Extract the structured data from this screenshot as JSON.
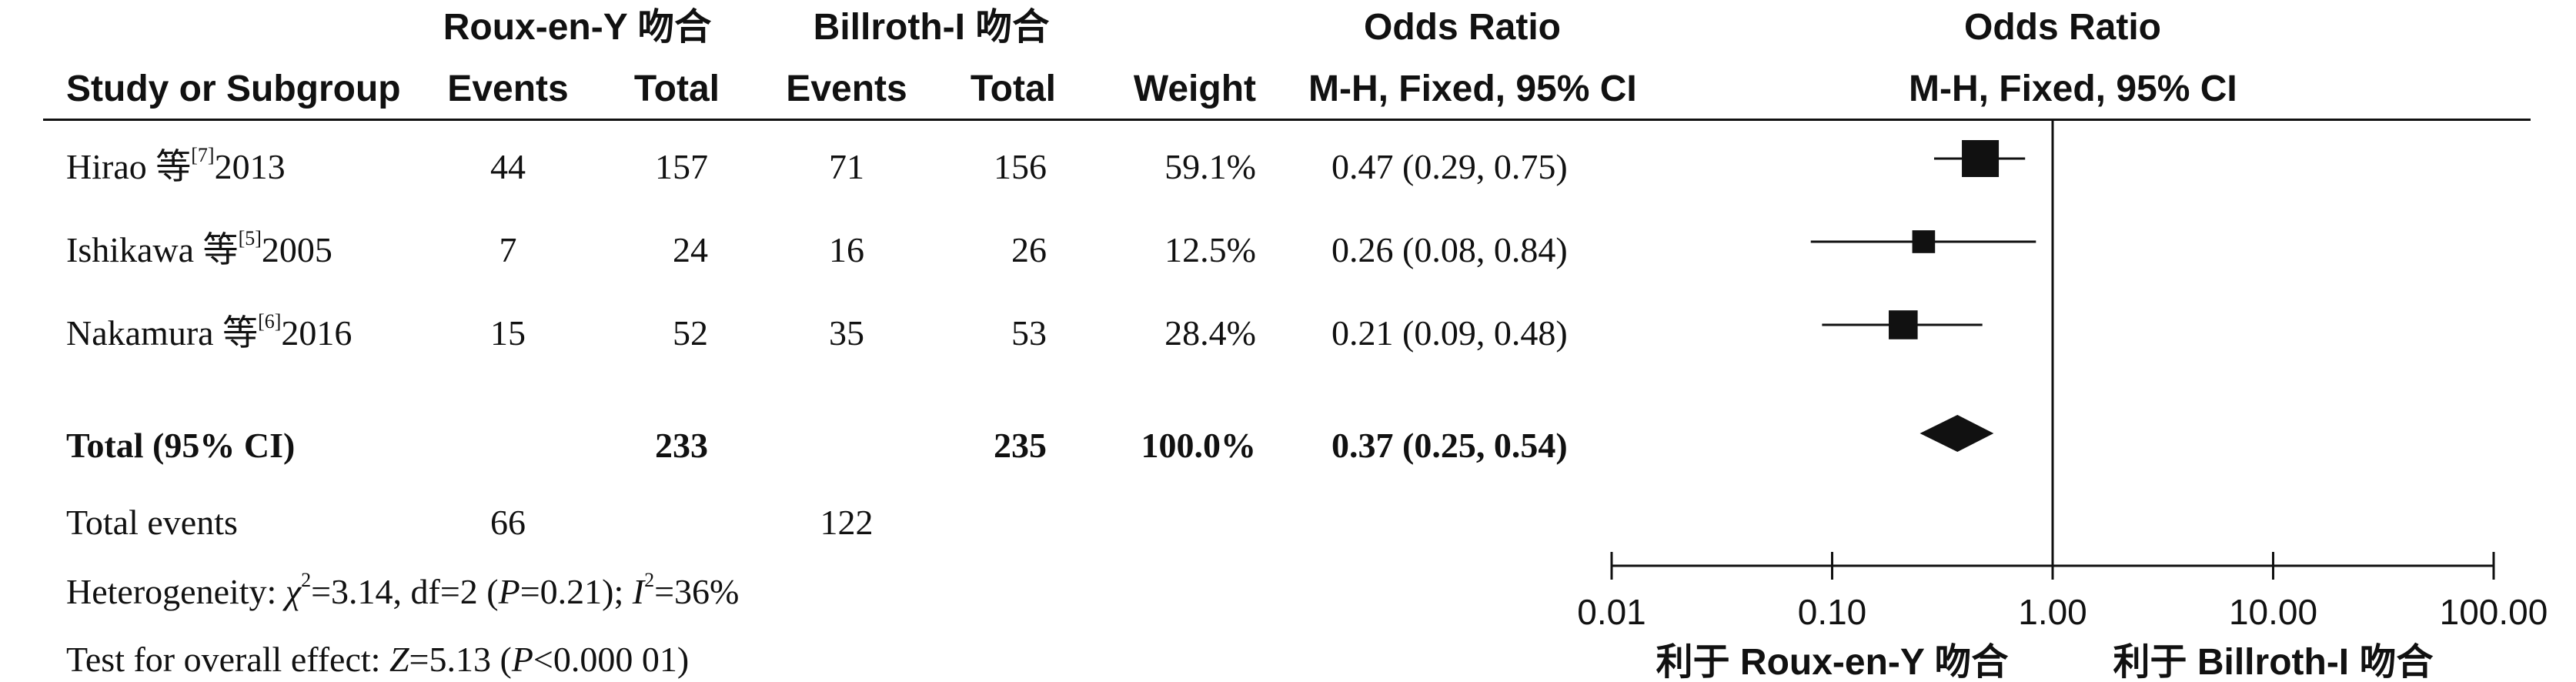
{
  "header": {
    "group1": "Roux-en-Y 吻合",
    "group2": "Billroth-I 吻合",
    "or_title": "Odds Ratio",
    "or_method": "M-H, Fixed, 95% CI",
    "plot_title": "Odds Ratio",
    "plot_method": "M-H, Fixed, 95% CI",
    "col_study": "Study or Subgroup",
    "col_events1": "Events",
    "col_total1": "Total",
    "col_events2": "Events",
    "col_total2": "Total",
    "col_weight": "Weight"
  },
  "studies": [
    {
      "name": "Hirao 等",
      "ref": "[7]",
      "year": "2013",
      "events1": "44",
      "total1": "157",
      "events2": "71",
      "total2": "156",
      "weight": "59.1%",
      "ci": "0.47 (0.29, 0.75)"
    },
    {
      "name": "Ishikawa 等",
      "ref": "[5]",
      "year": "2005",
      "events1": "7",
      "total1": "24",
      "events2": "16",
      "total2": "26",
      "weight": "12.5%",
      "ci": "0.26 (0.08, 0.84)"
    },
    {
      "name": "Nakamura 等",
      "ref": "[6]",
      "year": "2016",
      "events1": "15",
      "total1": "52",
      "events2": "35",
      "total2": "53",
      "weight": "28.4%",
      "ci": "0.21 (0.09, 0.48)"
    }
  ],
  "total": {
    "label": "Total (95% CI)",
    "total1": "233",
    "total2": "235",
    "weight": "100.0%",
    "ci": "0.37 (0.25, 0.54)"
  },
  "total_events": {
    "label": "Total events",
    "events1": "66",
    "events2": "122"
  },
  "heterogeneity": {
    "prefix": "Heterogeneity: ",
    "chi": "χ",
    "chi_sup": "2",
    "text1": "=3.14, df=2 (",
    "p": "P",
    "text2": "=0.21); ",
    "i": "I",
    "i_sup": "2",
    "text3": "=36%"
  },
  "overall": {
    "prefix": "Test for overall effect: ",
    "z": "Z",
    "text1": "=5.13 (",
    "p": "P",
    "text2": "<0.000 01)"
  },
  "chart_data": {
    "type": "forest",
    "x_scale": "log",
    "xlim": [
      0.01,
      100
    ],
    "ticks": [
      "0.01",
      "0.10",
      "1.00",
      "10.00",
      "100.00"
    ],
    "tick_values": [
      0.01,
      0.1,
      1,
      10,
      100
    ],
    "reference_line": 1,
    "favours_left": "利于 Roux-en-Y 吻合",
    "favours_right": "利于 Billroth-I 吻合",
    "studies": [
      {
        "or": 0.47,
        "lower": 0.29,
        "upper": 0.75,
        "weight": 59.1
      },
      {
        "or": 0.26,
        "lower": 0.08,
        "upper": 0.84,
        "weight": 12.5
      },
      {
        "or": 0.21,
        "lower": 0.09,
        "upper": 0.48,
        "weight": 28.4
      }
    ],
    "pooled": {
      "or": 0.37,
      "lower": 0.25,
      "upper": 0.54
    }
  }
}
